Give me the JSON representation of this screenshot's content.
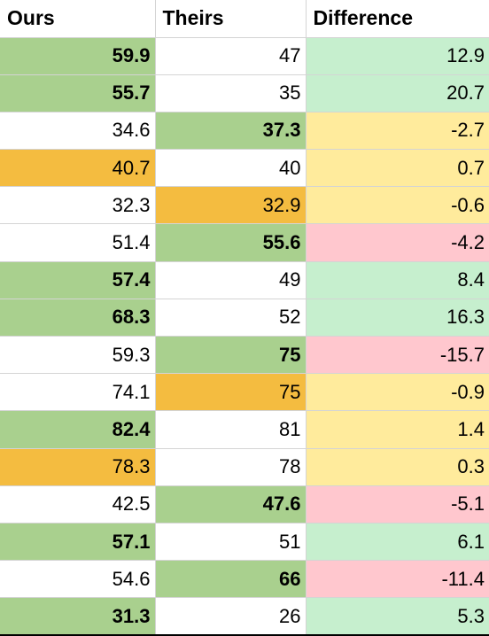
{
  "headers": {
    "ours": "Ours",
    "theirs": "Theirs",
    "difference": "Difference"
  },
  "colors": {
    "best_fill": "#a9d08e",
    "tie_fill": "#f4bc40",
    "diff_positive_fill": "#c6efce",
    "diff_positive_text": "#1b6b1b",
    "diff_neutral_fill": "#ffeb9c",
    "diff_neutral_text": "#9c5700",
    "diff_negative_fill": "#ffc7ce",
    "diff_negative_text": "#9c0006"
  },
  "rows": [
    {
      "ours": "59.9",
      "theirs": "47",
      "difference": "12.9",
      "ours_style": "green",
      "theirs_style": "none",
      "diff_style": "pos"
    },
    {
      "ours": "55.7",
      "theirs": "35",
      "difference": "20.7",
      "ours_style": "green",
      "theirs_style": "none",
      "diff_style": "pos"
    },
    {
      "ours": "34.6",
      "theirs": "37.3",
      "difference": "-2.7",
      "ours_style": "none",
      "theirs_style": "green",
      "diff_style": "neu"
    },
    {
      "ours": "40.7",
      "theirs": "40",
      "difference": "0.7",
      "ours_style": "orange",
      "theirs_style": "none",
      "diff_style": "neu"
    },
    {
      "ours": "32.3",
      "theirs": "32.9",
      "difference": "-0.6",
      "ours_style": "none",
      "theirs_style": "orange",
      "diff_style": "neu"
    },
    {
      "ours": "51.4",
      "theirs": "55.6",
      "difference": "-4.2",
      "ours_style": "none",
      "theirs_style": "green",
      "diff_style": "neg"
    },
    {
      "ours": "57.4",
      "theirs": "49",
      "difference": "8.4",
      "ours_style": "green",
      "theirs_style": "none",
      "diff_style": "pos"
    },
    {
      "ours": "68.3",
      "theirs": "52",
      "difference": "16.3",
      "ours_style": "green",
      "theirs_style": "none",
      "diff_style": "pos"
    },
    {
      "ours": "59.3",
      "theirs": "75",
      "difference": "-15.7",
      "ours_style": "none",
      "theirs_style": "green",
      "diff_style": "neg"
    },
    {
      "ours": "74.1",
      "theirs": "75",
      "difference": "-0.9",
      "ours_style": "none",
      "theirs_style": "orange",
      "diff_style": "neu"
    },
    {
      "ours": "82.4",
      "theirs": "81",
      "difference": "1.4",
      "ours_style": "green",
      "theirs_style": "none",
      "diff_style": "neu"
    },
    {
      "ours": "78.3",
      "theirs": "78",
      "difference": "0.3",
      "ours_style": "orange",
      "theirs_style": "none",
      "diff_style": "neu"
    },
    {
      "ours": "42.5",
      "theirs": "47.6",
      "difference": "-5.1",
      "ours_style": "none",
      "theirs_style": "green",
      "diff_style": "neg"
    },
    {
      "ours": "57.1",
      "theirs": "51",
      "difference": "6.1",
      "ours_style": "green",
      "theirs_style": "none",
      "diff_style": "pos"
    },
    {
      "ours": "54.6",
      "theirs": "66",
      "difference": "-11.4",
      "ours_style": "none",
      "theirs_style": "green",
      "diff_style": "neg"
    },
    {
      "ours": "31.3",
      "theirs": "26",
      "difference": "5.3",
      "ours_style": "green",
      "theirs_style": "none",
      "diff_style": "pos"
    }
  ]
}
